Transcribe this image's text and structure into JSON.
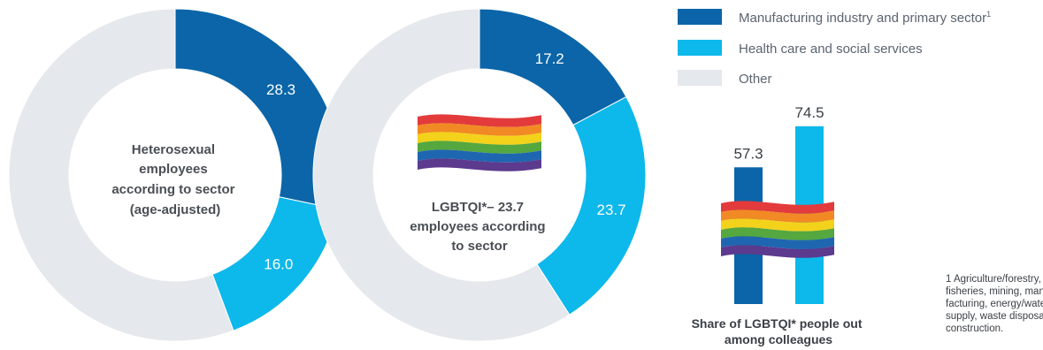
{
  "colors": {
    "manufacturing": "#0b65a8",
    "health": "#0db8eb",
    "other": "#e5e8ec",
    "rainbow": [
      "#e33b3b",
      "#f18a24",
      "#f3d21b",
      "#55a73f",
      "#1f66b0",
      "#5c3a8e"
    ]
  },
  "legend": [
    {
      "label": "Manufacturing industry and primary sector",
      "sup": "1",
      "color_key": "manufacturing"
    },
    {
      "label": "Health care and social services",
      "color_key": "health"
    },
    {
      "label": "Other",
      "color_key": "other"
    }
  ],
  "chart_data": [
    {
      "type": "pie",
      "donut": true,
      "center_label": [
        "Heterosexual",
        "employees",
        "according to sector",
        "(age-adjusted)"
      ],
      "slices": [
        {
          "name": "Manufacturing industry and primary sector",
          "value": 28.3,
          "label": "28.3",
          "color_key": "manufacturing"
        },
        {
          "name": "Health care and social services",
          "value": 16.0,
          "label": "16.0",
          "color_key": "health"
        },
        {
          "name": "Other",
          "value": 55.7,
          "label": "",
          "color_key": "other"
        }
      ]
    },
    {
      "type": "pie",
      "donut": true,
      "center_label": [
        "LGBTQI*– 23.7",
        "employees according",
        "to sector"
      ],
      "slices": [
        {
          "name": "Manufacturing industry and primary sector",
          "value": 17.2,
          "label": "17.2",
          "color_key": "manufacturing"
        },
        {
          "name": "Health care and social services",
          "value": 23.7,
          "label": "23.7",
          "color_key": "health"
        },
        {
          "name": "Other",
          "value": 59.1,
          "label": "",
          "color_key": "other"
        }
      ]
    },
    {
      "type": "bar",
      "title": [
        "Share of LGBTQI* people out",
        "among colleagues"
      ],
      "values": [
        57.3,
        74.5
      ],
      "labels": [
        "57.3",
        "74.5"
      ],
      "color_keys": [
        "manufacturing",
        "health"
      ],
      "ylim": [
        0,
        100
      ]
    }
  ],
  "footnote": [
    "1 Agriculture/forestry,",
    "fisheries, mining, manu-",
    "facturing, energy/water",
    "supply, waste disposal,",
    "construction."
  ]
}
